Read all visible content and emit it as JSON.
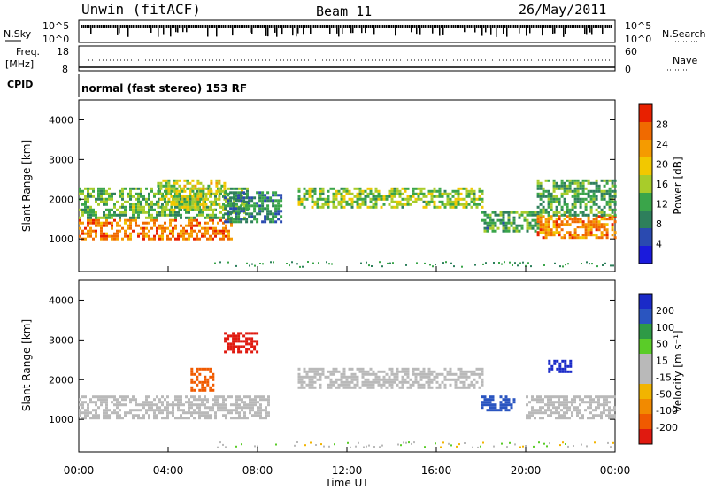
{
  "header": {
    "station": "Unwin (fitACF)",
    "beam": "Beam 11",
    "date": "26/May/2011"
  },
  "top_panels": {
    "nsky_label": "N.Sky",
    "nsky_ticks": [
      "10^5",
      "10^0"
    ],
    "nsearch_label": "N.Search",
    "nsearch_ticks": [
      "10^5",
      "10^0"
    ],
    "freq_label_line1": "Freq.",
    "freq_label_line2": "[MHz]",
    "freq_ticks": [
      "18",
      "8"
    ],
    "nave_label": "Nave",
    "nave_ticks": [
      "60",
      "0"
    ],
    "cpid_label": "CPID",
    "cpid_text": "normal (fast stereo) 153 RF"
  },
  "colors": {
    "power_scale": [
      "#1a1adc",
      "#2a4ab0",
      "#2e7f5c",
      "#3aa54a",
      "#a8cc2a",
      "#f2c800",
      "#f59b00",
      "#f06a00",
      "#e82000"
    ],
    "velocity_scale": [
      "#1a2ac8",
      "#2a55c0",
      "#2e9a46",
      "#5acc28",
      "#b9b9b9",
      "#b9b9b9",
      "#f2b400",
      "#f28a00",
      "#f05a00",
      "#e01a10"
    ]
  },
  "chart_data": [
    {
      "type": "heatmap",
      "panel": "power",
      "ylabel": "Slant Range [km]",
      "yticks": [
        "4000",
        "3000",
        "2000",
        "1000"
      ],
      "ylim": [
        180,
        4500
      ],
      "colorbar_label": "Power [dB]",
      "colorbar_ticks": [
        "28",
        "24",
        "20",
        "16",
        "12",
        "8",
        "4"
      ],
      "bands": [
        {
          "t": [
            0.0,
            6.8
          ],
          "range": [
            1000,
            1500
          ],
          "value": 25
        },
        {
          "t": [
            0.0,
            7.5
          ],
          "range": [
            1500,
            2300
          ],
          "value": 12
        },
        {
          "t": [
            3.5,
            6.5
          ],
          "range": [
            1700,
            2500
          ],
          "value": 16
        },
        {
          "t": [
            6.5,
            9.0
          ],
          "range": [
            1400,
            2200
          ],
          "value": 8
        },
        {
          "t": [
            9.8,
            18.0
          ],
          "range": [
            1800,
            2300
          ],
          "value": 14
        },
        {
          "t": [
            18.0,
            20.5
          ],
          "range": [
            1200,
            1700
          ],
          "value": 10
        },
        {
          "t": [
            20.5,
            24.0
          ],
          "range": [
            1000,
            1600
          ],
          "value": 24
        },
        {
          "t": [
            20.5,
            24.0
          ],
          "range": [
            1600,
            2500
          ],
          "value": 11
        }
      ]
    },
    {
      "type": "heatmap",
      "panel": "velocity",
      "ylabel": "Slant Range [km]",
      "yticks": [
        "4000",
        "3000",
        "2000",
        "1000"
      ],
      "ylim": [
        180,
        4500
      ],
      "colorbar_label": "Velocity [m s⁻¹]",
      "colorbar_ticks": [
        "200",
        "100",
        "50",
        "15",
        "-15",
        "-50",
        "-100",
        "-200"
      ],
      "bands": [
        {
          "t": [
            0.0,
            8.5
          ],
          "range": [
            1000,
            1600
          ],
          "value": 0
        },
        {
          "t": [
            5.0,
            6.0
          ],
          "range": [
            1700,
            2300
          ],
          "value": -150
        },
        {
          "t": [
            6.5,
            8.0
          ],
          "range": [
            2700,
            3200
          ],
          "value": -200
        },
        {
          "t": [
            9.8,
            18.0
          ],
          "range": [
            1800,
            2300
          ],
          "value": 0
        },
        {
          "t": [
            18.0,
            19.5
          ],
          "range": [
            1200,
            1600
          ],
          "value": 150
        },
        {
          "t": [
            20.0,
            24.0
          ],
          "range": [
            1000,
            1600
          ],
          "value": 0
        },
        {
          "t": [
            21.0,
            22.0
          ],
          "range": [
            2200,
            2500
          ],
          "value": 200
        }
      ]
    }
  ],
  "xaxis": {
    "label": "Time UT",
    "ticks": [
      "00:00",
      "04:00",
      "08:00",
      "12:00",
      "16:00",
      "20:00",
      "00:00"
    ]
  }
}
